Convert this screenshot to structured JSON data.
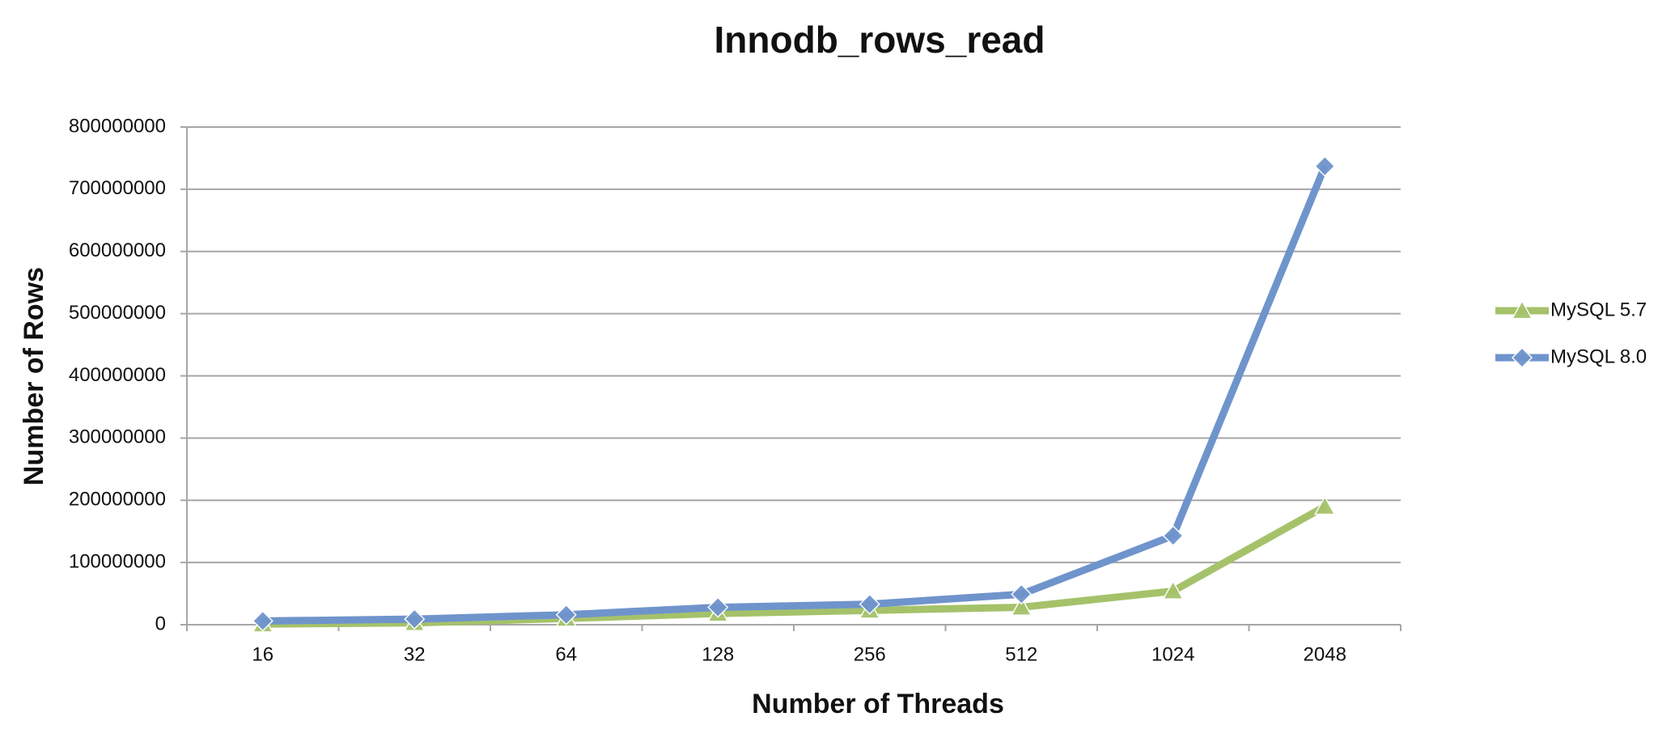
{
  "chart_data": {
    "type": "line",
    "title": "Innodb_rows_read",
    "x_label": "Number of Threads",
    "y_label": "Number of Rows",
    "categories": [
      "16",
      "32",
      "64",
      "128",
      "256",
      "512",
      "1024",
      "2048"
    ],
    "series": [
      {
        "name": "MySQL 5.7",
        "color": "#a5c26a",
        "marker": "triangle",
        "values": [
          1000000,
          3000000,
          10000000,
          18000000,
          23000000,
          28000000,
          54000000,
          190000000
        ]
      },
      {
        "name": "MySQL 8.0",
        "color": "#6f94cc",
        "marker": "diamond",
        "values": [
          6000000,
          9000000,
          16000000,
          28000000,
          33000000,
          49000000,
          143000000,
          737000000
        ]
      }
    ],
    "ylim": [
      0,
      800000000
    ],
    "yticks": [
      0,
      100000000,
      200000000,
      300000000,
      400000000,
      500000000,
      600000000,
      700000000,
      800000000
    ],
    "grid": true,
    "legend": "right"
  }
}
